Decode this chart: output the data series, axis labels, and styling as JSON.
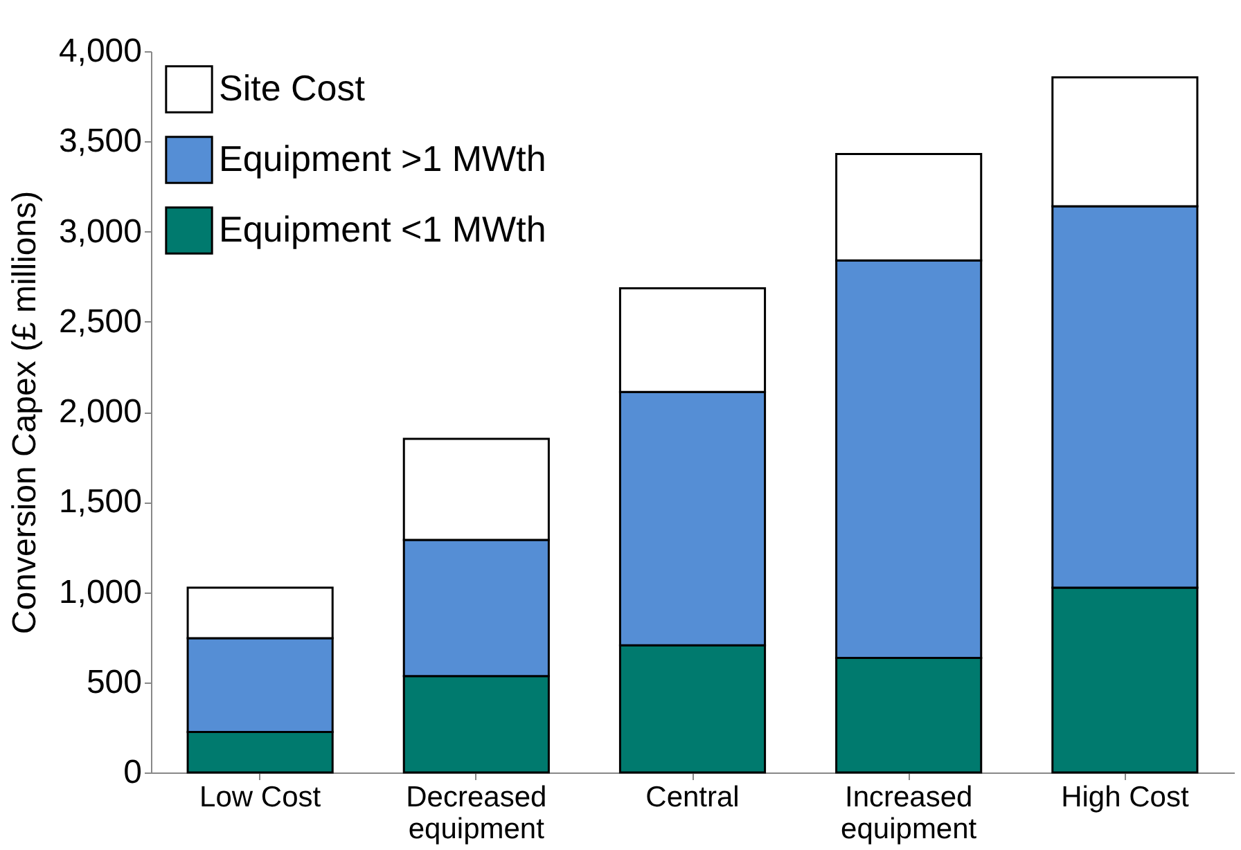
{
  "chart_data": {
    "type": "bar",
    "stacked": true,
    "categories": [
      "Low Cost",
      "Decreased equipment",
      "Central",
      "Increased equipment",
      "High Cost"
    ],
    "ylabel": "Conversion Capex (£ millions)",
    "ylim": [
      0,
      4000
    ],
    "yticks": [
      {
        "value": 0,
        "label": "0"
      },
      {
        "value": 500,
        "label": "500"
      },
      {
        "value": 1000,
        "label": "1,000"
      },
      {
        "value": 1500,
        "label": "1,500"
      },
      {
        "value": 2000,
        "label": "2,000"
      },
      {
        "value": 2500,
        "label": "2,500"
      },
      {
        "value": 3000,
        "label": "3,000"
      },
      {
        "value": 3500,
        "label": "3,500"
      },
      {
        "value": 4000,
        "label": "4,000"
      }
    ],
    "series": [
      {
        "name": "Equipment <1 MWth",
        "color": "#007a6e",
        "values": [
          225,
          535,
          705,
          635,
          1025
        ]
      },
      {
        "name": "Equipment >1 MWth",
        "color": "#558ed5",
        "values": [
          520,
          755,
          1405,
          2205,
          2115
        ]
      },
      {
        "name": "Site Cost",
        "color": "#ffffff",
        "values": [
          280,
          560,
          575,
          590,
          715
        ]
      }
    ],
    "grid": false,
    "legend": "top left"
  }
}
